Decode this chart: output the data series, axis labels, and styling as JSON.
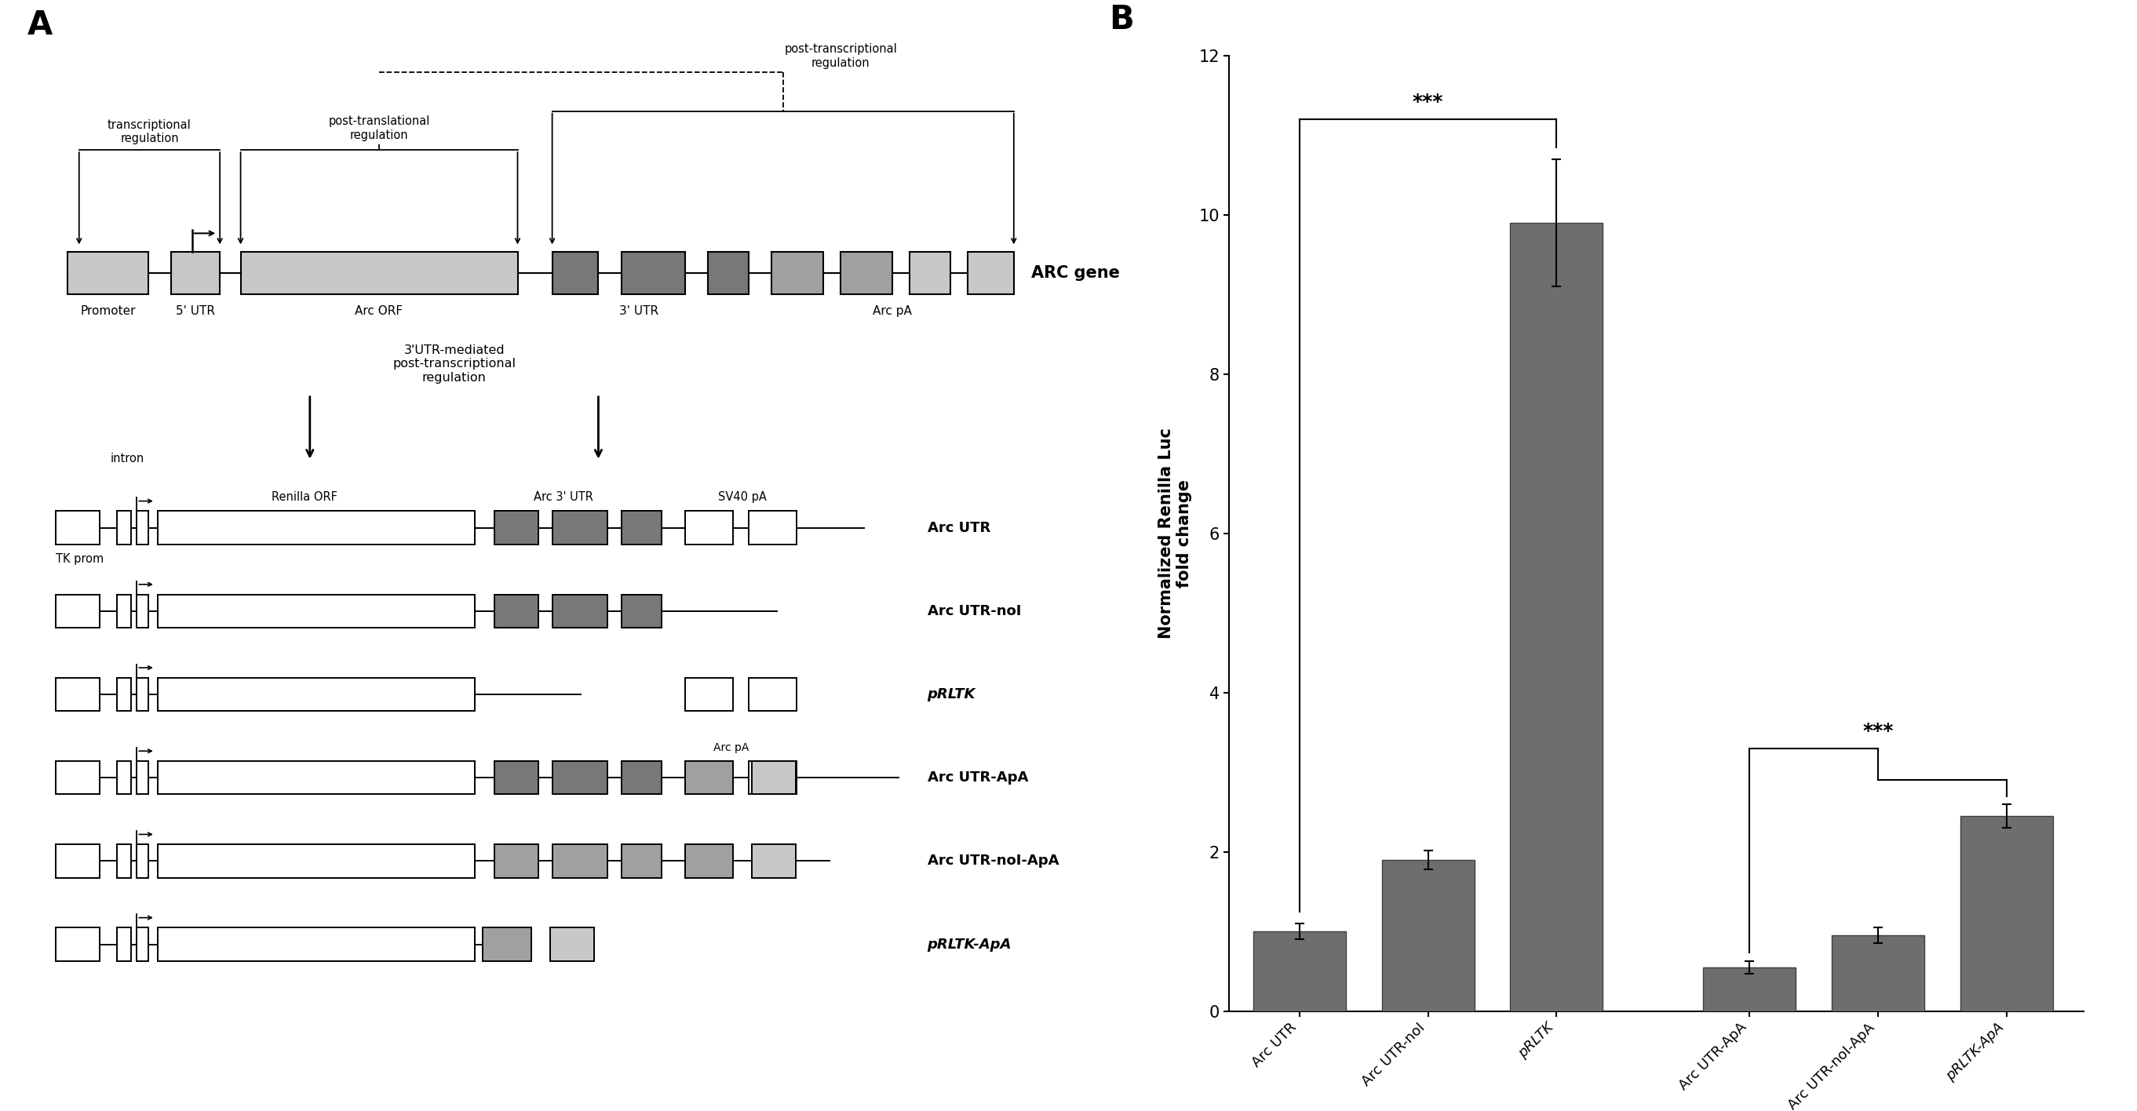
{
  "bar_values": [
    1.0,
    1.9,
    9.9,
    0.55,
    0.95,
    2.45
  ],
  "bar_errors": [
    0.1,
    0.12,
    0.8,
    0.08,
    0.1,
    0.15
  ],
  "bar_labels": [
    "Arc UTR",
    "Arc UTR-noI",
    "pRLTK",
    "Arc UTR-ApA",
    "Arc UTR-noI-ApA",
    "pRLTK-ApA"
  ],
  "bar_color": "#6e6e6e",
  "ylabel": "Normalized Renilla Luc\nfold change",
  "ylim": [
    0,
    12
  ],
  "yticks": [
    0,
    2,
    4,
    6,
    8,
    10,
    12
  ],
  "bg_color": "#ffffff",
  "light_gray": "#c8c8c8",
  "mid_gray": "#a0a0a0",
  "dark_gray": "#787878"
}
